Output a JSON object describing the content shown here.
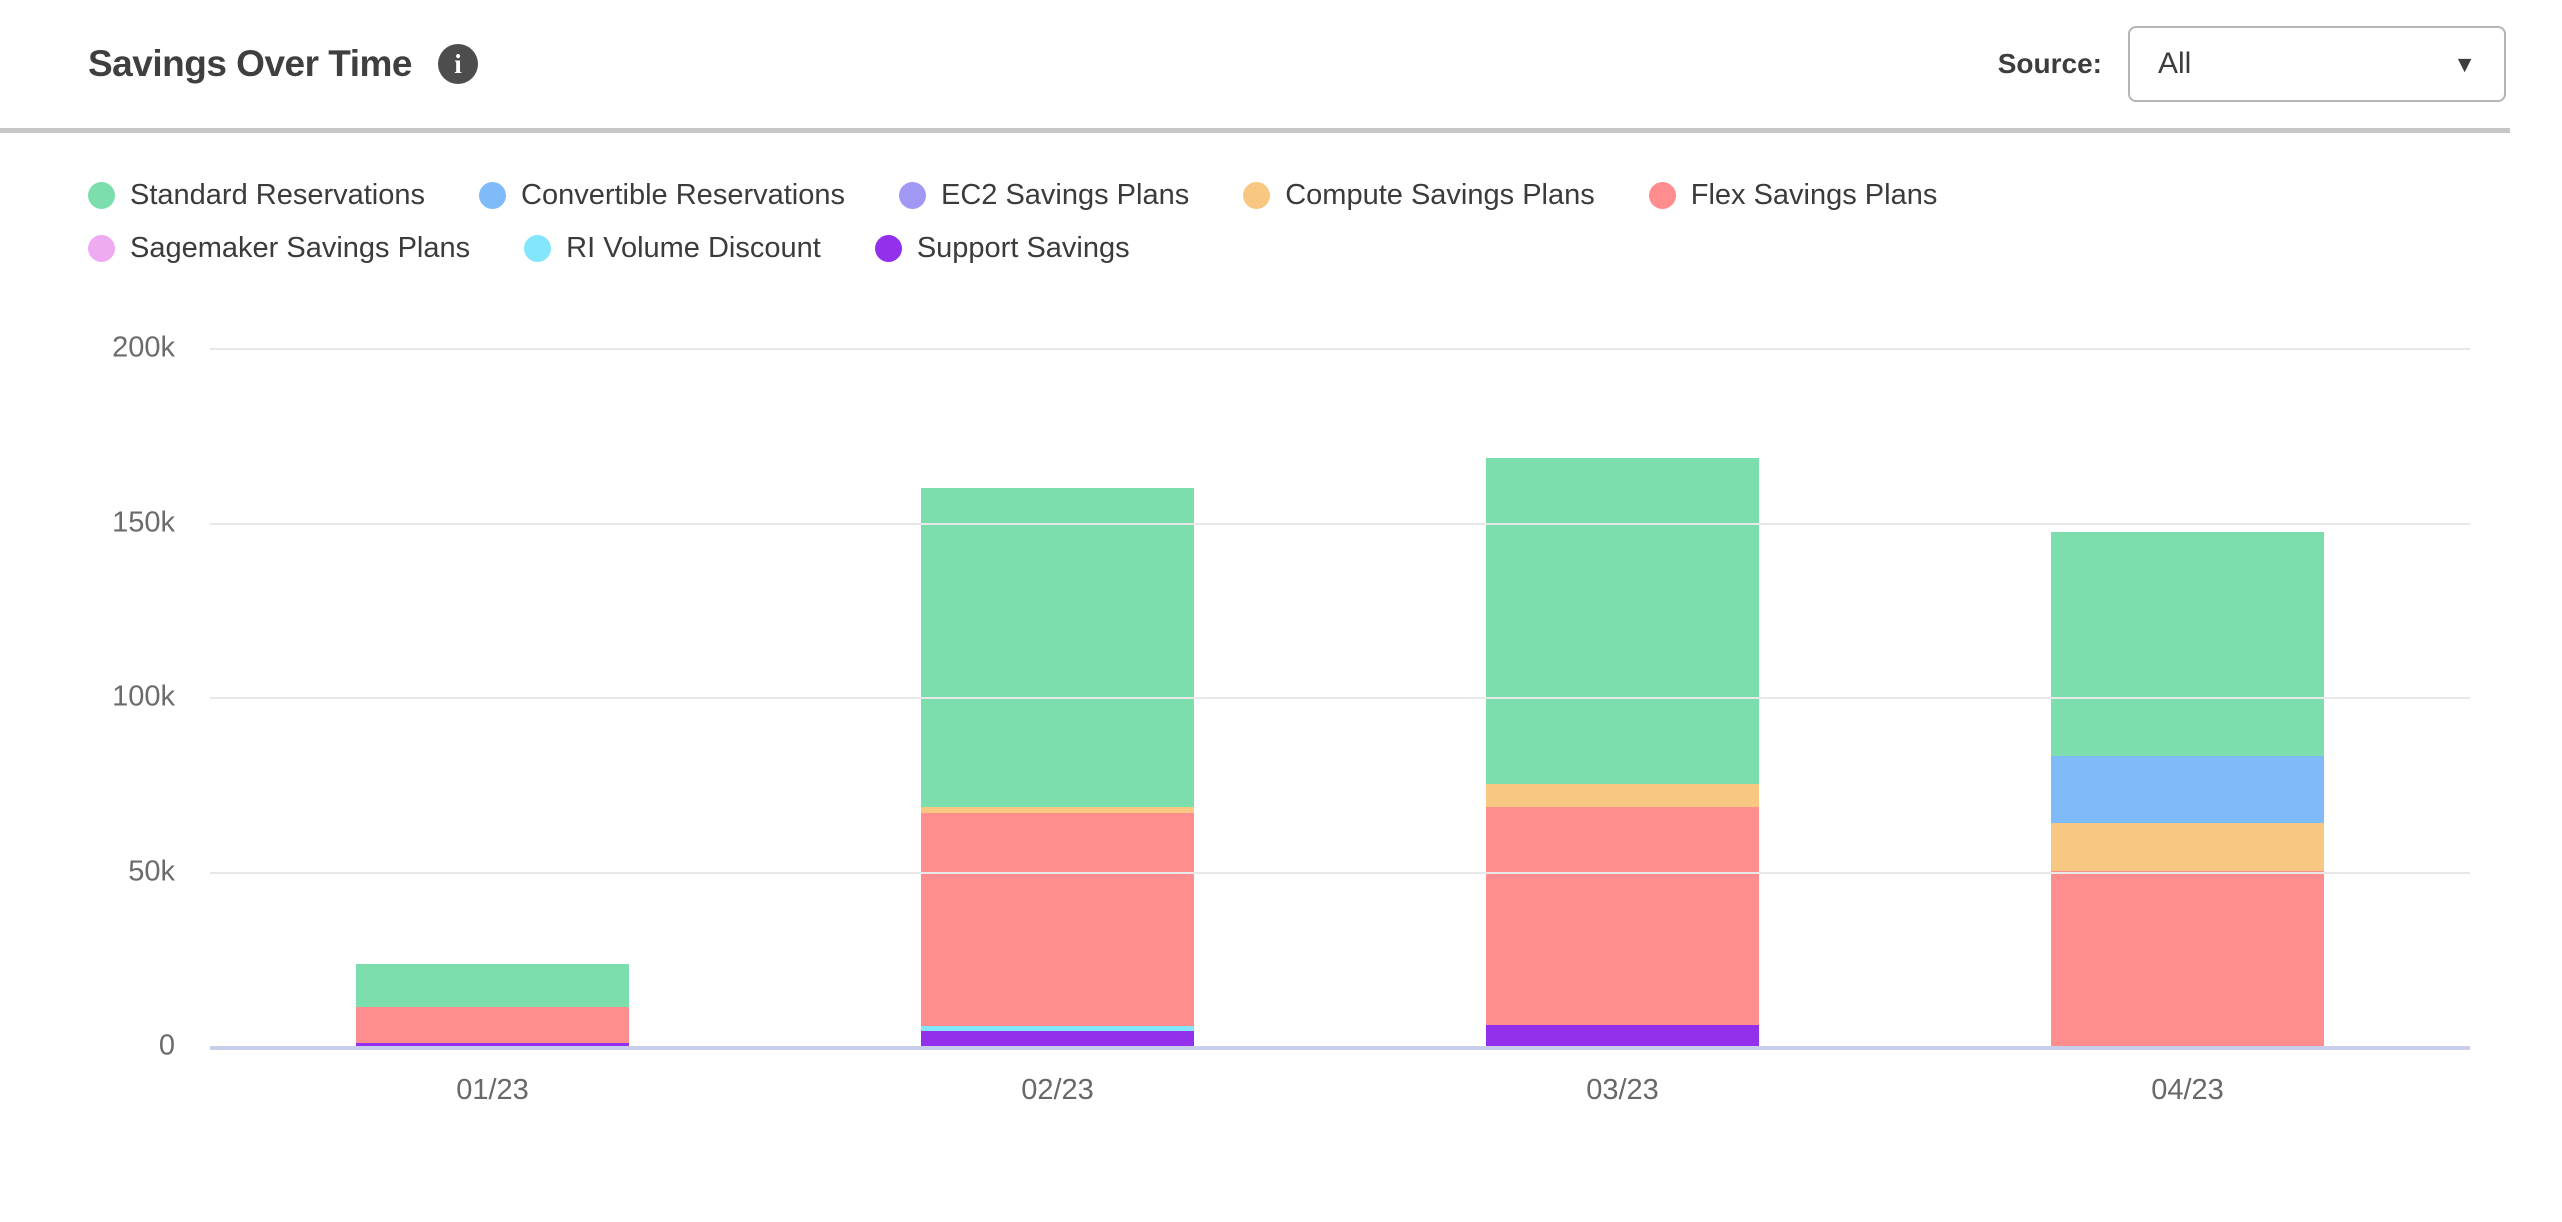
{
  "header": {
    "title": "Savings Over Time",
    "source_label": "Source:",
    "source_value": "All"
  },
  "icons": {
    "info_glyph": "i",
    "dropdown_caret": "▼"
  },
  "chart_data": {
    "type": "bar",
    "variant": "stacked",
    "title": "Savings Over Time",
    "unit": "USD thousands (k)",
    "categories": [
      "01/23",
      "02/23",
      "03/23",
      "04/23"
    ],
    "y_ticks": [
      "200k",
      "150k",
      "100k",
      "50k",
      "0"
    ],
    "ylim": [
      0,
      200
    ],
    "grid": "horizontal",
    "legend_position": "top-left",
    "series": [
      {
        "name": "Standard Reservations",
        "color": "#7cdead",
        "values": [
          12.2,
          91.4,
          93.5,
          64.2
        ]
      },
      {
        "name": "Convertible Reservations",
        "color": "#7ebbf8",
        "values": [
          0,
          0,
          0,
          19.2
        ]
      },
      {
        "name": "EC2 Savings Plans",
        "color": "#a198f4",
        "values": [
          0,
          0,
          0,
          0
        ]
      },
      {
        "name": "Compute Savings Plans",
        "color": "#f8c781",
        "values": [
          0,
          1.6,
          6.6,
          13.8
        ]
      },
      {
        "name": "Flex Savings Plans",
        "color": "#ff8d8d",
        "values": [
          10.2,
          60.9,
          62.4,
          50.1
        ]
      },
      {
        "name": "Sagemaker Savings Plans",
        "color": "#efabf2",
        "values": [
          0,
          0,
          0,
          0
        ]
      },
      {
        "name": "RI Volume Discount",
        "color": "#84e6fa",
        "values": [
          0,
          1.4,
          0,
          0
        ]
      },
      {
        "name": "Support Savings",
        "color": "#9230ec",
        "values": [
          0.8,
          4.2,
          5.9,
          0
        ]
      }
    ],
    "stack_order_bottom_to_top": [
      "Support Savings",
      "RI Volume Discount",
      "Sagemaker Savings Plans",
      "Flex Savings Plans",
      "Compute Savings Plans",
      "EC2 Savings Plans",
      "Convertible Reservations",
      "Standard Reservations"
    ],
    "totals": [
      23.2,
      159.5,
      168.4,
      147.3
    ]
  },
  "colors": {
    "axis_baseline": "#c9cfea",
    "gridline": "#e8e8e8",
    "axis_text": "#6b6b6b",
    "title_text": "#3f3f3f",
    "divider": "#c6c6c6"
  }
}
